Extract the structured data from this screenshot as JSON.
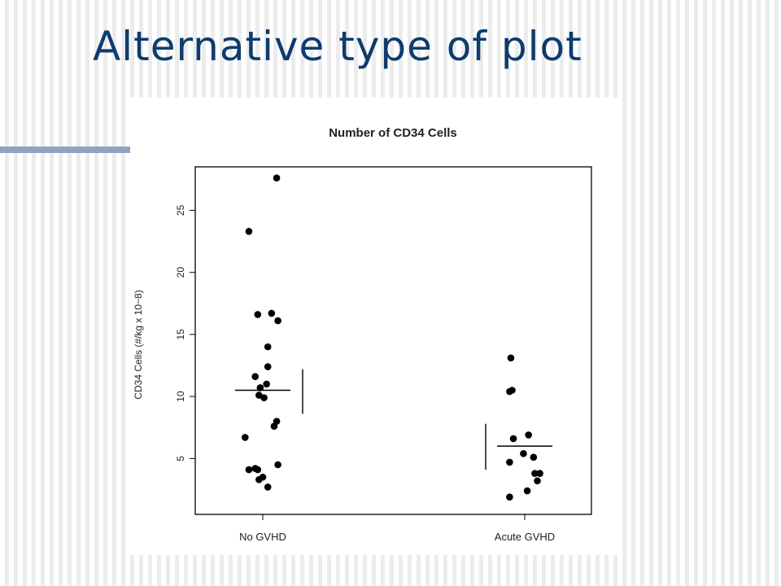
{
  "slide": {
    "title": "Alternative type of plot"
  },
  "colors": {
    "title": "#0d3c6e",
    "accent_line": "#8ea4bf",
    "points": "#000000"
  },
  "chart_data": {
    "type": "scatter",
    "title": "Number of CD34 Cells",
    "xlabel": "",
    "ylabel": "CD34 Cells (#/kg x 10−8)",
    "categories": [
      "No GVHD",
      "Acute GVHD"
    ],
    "ylim": [
      0.5,
      28.5
    ],
    "yticks": [
      5,
      10,
      15,
      20,
      25
    ],
    "grid": false,
    "legend": "none",
    "series": [
      {
        "category": "No GVHD",
        "points": [
          {
            "offset": 0.11,
            "y": 27.6
          },
          {
            "offset": -0.11,
            "y": 23.3
          },
          {
            "offset": -0.04,
            "y": 16.6
          },
          {
            "offset": 0.07,
            "y": 16.7
          },
          {
            "offset": 0.12,
            "y": 16.1
          },
          {
            "offset": 0.04,
            "y": 14.0
          },
          {
            "offset": 0.04,
            "y": 12.4
          },
          {
            "offset": -0.06,
            "y": 11.6
          },
          {
            "offset": -0.02,
            "y": 10.7
          },
          {
            "offset": 0.03,
            "y": 11.0
          },
          {
            "offset": -0.03,
            "y": 10.1
          },
          {
            "offset": 0.01,
            "y": 9.9
          },
          {
            "offset": 0.11,
            "y": 8.0
          },
          {
            "offset": 0.09,
            "y": 7.6
          },
          {
            "offset": -0.14,
            "y": 6.7
          },
          {
            "offset": 0.12,
            "y": 4.5
          },
          {
            "offset": -0.11,
            "y": 4.1
          },
          {
            "offset": -0.06,
            "y": 4.2
          },
          {
            "offset": -0.04,
            "y": 4.1
          },
          {
            "offset": -0.03,
            "y": 3.3
          },
          {
            "offset": 0.0,
            "y": 3.5
          },
          {
            "offset": 0.04,
            "y": 2.7
          }
        ],
        "mean": 10.5,
        "sd_low": 8.6,
        "sd_high": 12.2
      },
      {
        "category": "Acute GVHD",
        "points": [
          {
            "offset": -0.11,
            "y": 13.1
          },
          {
            "offset": -0.12,
            "y": 10.4
          },
          {
            "offset": -0.1,
            "y": 10.5
          },
          {
            "offset": 0.03,
            "y": 6.9
          },
          {
            "offset": -0.09,
            "y": 6.6
          },
          {
            "offset": -0.01,
            "y": 5.4
          },
          {
            "offset": 0.07,
            "y": 5.1
          },
          {
            "offset": -0.12,
            "y": 4.7
          },
          {
            "offset": 0.08,
            "y": 3.8
          },
          {
            "offset": 0.12,
            "y": 3.8
          },
          {
            "offset": 0.1,
            "y": 3.2
          },
          {
            "offset": 0.02,
            "y": 2.4
          },
          {
            "offset": -0.12,
            "y": 1.9
          }
        ],
        "mean": 6.0,
        "sd_low": 4.1,
        "sd_high": 7.8
      }
    ]
  }
}
